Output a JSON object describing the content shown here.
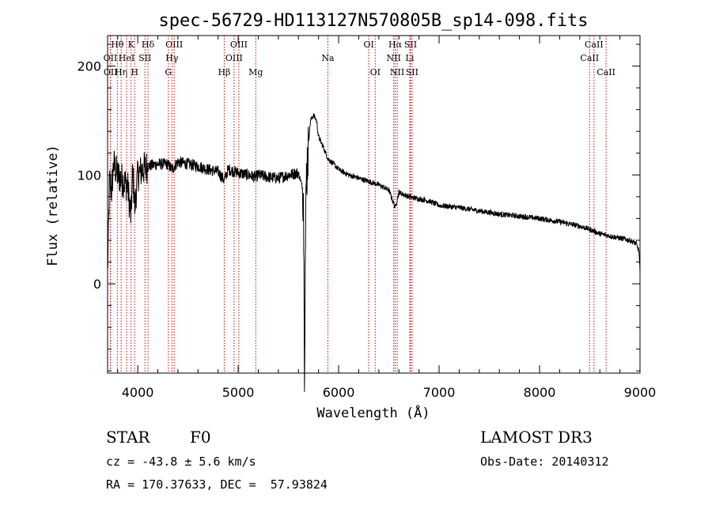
{
  "chart_data": {
    "type": "line",
    "title": "spec-56729-HD113127N570805B_sp14-098.fits",
    "xlabel": "Wavelength (Å)",
    "ylabel": "Flux (relative)",
    "xlim": [
      3700,
      9000
    ],
    "ylim": [
      -82,
      228
    ],
    "xticks": [
      4000,
      5000,
      6000,
      7000,
      8000,
      9000
    ],
    "yticks": [
      0,
      100,
      200
    ],
    "spectrum_anchors": {
      "x": [
        3700,
        3720,
        3740,
        3760,
        3800,
        3850,
        3900,
        3933,
        3950,
        3970,
        4000,
        4050,
        4100,
        4200,
        4300,
        4340,
        4400,
        4500,
        4600,
        4700,
        4800,
        4861,
        4900,
        5000,
        5100,
        5175,
        5200,
        5300,
        5400,
        5500,
        5600,
        5650,
        5660,
        5670,
        5680,
        5700,
        5720,
        5750,
        5780,
        5800,
        5850,
        5893,
        5950,
        6000,
        6100,
        6200,
        6300,
        6400,
        6500,
        6563,
        6600,
        6700,
        6800,
        6900,
        7000,
        7200,
        7400,
        7600,
        7800,
        8000,
        8200,
        8400,
        8500,
        8600,
        8700,
        8800,
        8900,
        8960,
        8990,
        9000
      ],
      "y": [
        10,
        95,
        85,
        110,
        100,
        95,
        90,
        60,
        105,
        70,
        100,
        105,
        108,
        110,
        110,
        105,
        112,
        110,
        108,
        105,
        103,
        95,
        105,
        102,
        100,
        98,
        100,
        98,
        97,
        100,
        102,
        85,
        -70,
        40,
        100,
        130,
        150,
        155,
        150,
        135,
        125,
        115,
        110,
        105,
        100,
        97,
        94,
        91,
        86,
        70,
        84,
        80,
        78,
        76,
        72,
        70,
        67,
        64,
        62,
        60,
        57,
        53,
        50,
        46,
        44,
        42,
        40,
        37,
        30,
        10
      ]
    },
    "spectral_lines": [
      {
        "name": "Hθ",
        "wavelength": 3797,
        "row": 0
      },
      {
        "name": "OII",
        "wavelength": 3727,
        "row": 1
      },
      {
        "name": "OII",
        "wavelength": 3729,
        "row": 2
      },
      {
        "name": "Hη",
        "wavelength": 3835,
        "row": 2
      },
      {
        "name": "K",
        "wavelength": 3934,
        "row": 0
      },
      {
        "name": "HeI",
        "wavelength": 3889,
        "row": 1
      },
      {
        "name": "H",
        "wavelength": 3969,
        "row": 2
      },
      {
        "name": "Hδ",
        "wavelength": 4102,
        "row": 0
      },
      {
        "name": "SII",
        "wavelength": 4072,
        "row": 1
      },
      {
        "name": "OIII",
        "wavelength": 4363,
        "row": 0
      },
      {
        "name": "Hγ",
        "wavelength": 4341,
        "row": 1
      },
      {
        "name": "G",
        "wavelength": 4305,
        "row": 2
      },
      {
        "name": "OIII",
        "wavelength": 5007,
        "row": 0
      },
      {
        "name": "OIII",
        "wavelength": 4959,
        "row": 1
      },
      {
        "name": "Hβ",
        "wavelength": 4861,
        "row": 2
      },
      {
        "name": "Mg",
        "wavelength": 5175,
        "row": 2
      },
      {
        "name": "Na",
        "wavelength": 5893,
        "row": 1
      },
      {
        "name": "OI",
        "wavelength": 6300,
        "row": 0
      },
      {
        "name": "OI",
        "wavelength": 6364,
        "row": 2
      },
      {
        "name": "Hα",
        "wavelength": 6563,
        "row": 0
      },
      {
        "name": "NII",
        "wavelength": 6548,
        "row": 1
      },
      {
        "name": "NII",
        "wavelength": 6583,
        "row": 2
      },
      {
        "name": "SII",
        "wavelength": 6716,
        "row": 0
      },
      {
        "name": "Li",
        "wavelength": 6708,
        "row": 1
      },
      {
        "name": "SII",
        "wavelength": 6731,
        "row": 2
      },
      {
        "name": "CaII",
        "wavelength": 8542,
        "row": 0
      },
      {
        "name": "CaII",
        "wavelength": 8498,
        "row": 1
      },
      {
        "name": "CaII",
        "wavelength": 8662,
        "row": 2
      }
    ]
  },
  "info": {
    "class": "STAR",
    "subclass": "F0",
    "survey": "LAMOST DR3",
    "cz": "cz = -43.8 ± 5.6 km/s",
    "obs_date": "Obs-Date: 20140312",
    "coords": "RA = 170.37633, DEC =  57.93824"
  },
  "colors": {
    "line_marker": "#cc0000",
    "spectrum": "#000000"
  }
}
